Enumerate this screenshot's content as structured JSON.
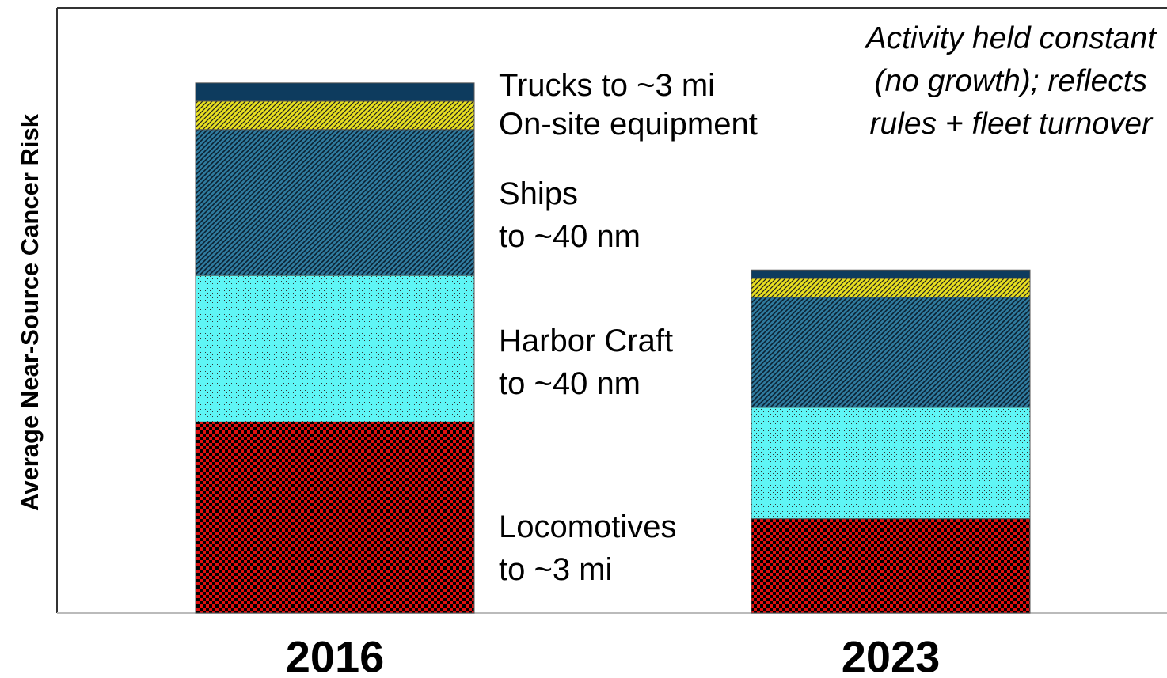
{
  "chart_data": {
    "type": "stacked_bar",
    "y_label": "Average Near-Source Cancer Risk",
    "annotation": "Activity held constant\n(no growth); reflects\nrules + fleet turnover",
    "categories": [
      "2016",
      "2023"
    ],
    "ylim": [
      0,
      100
    ],
    "series": [
      {
        "name": "Locomotives\nto ~3 mi",
        "color": "#e01010",
        "values": [
          31.6,
          15.6
        ]
      },
      {
        "name": "Harbor Craft\nto ~40 nm",
        "color": "#5ff5f5",
        "values": [
          24.2,
          18.4
        ]
      },
      {
        "name": "Ships\nto ~40 nm",
        "color": "#2f7a9e",
        "values": [
          24.1,
          18.2
        ]
      },
      {
        "name": "On-site equipment",
        "color": "#e8e020",
        "values": [
          4.7,
          3.1
        ]
      },
      {
        "name": "Trucks to ~3 mi",
        "color": "#0d3b5e",
        "values": [
          3.0,
          1.4
        ]
      }
    ]
  }
}
